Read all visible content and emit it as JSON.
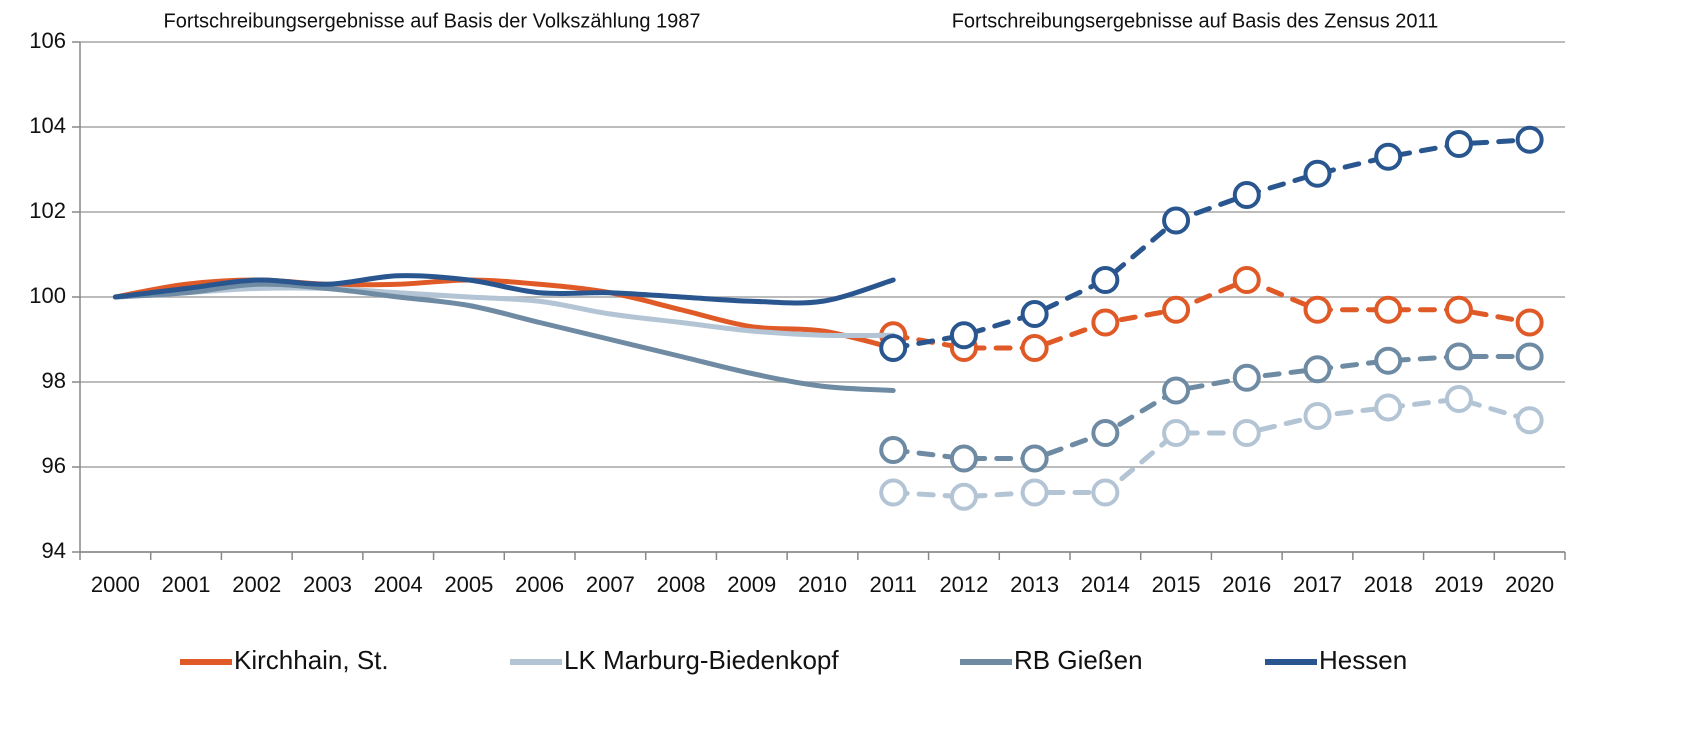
{
  "chart_data": {
    "type": "line",
    "annotations": [
      "Fortschreibungsergebnisse auf Basis der Volkszählung 1987",
      "Fortschreibungsergebnisse auf Basis des Zensus 2011"
    ],
    "categories": [
      "2000",
      "2001",
      "2002",
      "2003",
      "2004",
      "2005",
      "2006",
      "2007",
      "2008",
      "2009",
      "2010",
      "2011",
      "2012",
      "2013",
      "2014",
      "2015",
      "2016",
      "2017",
      "2018",
      "2019",
      "2020"
    ],
    "ylim": [
      94,
      106
    ],
    "yticks": [
      94,
      96,
      98,
      100,
      102,
      104,
      106
    ],
    "grid": true,
    "legend": "bottom",
    "series": [
      {
        "name": "Kirchhain, St.",
        "color": "#e05a27",
        "values": [
          100,
          100.3,
          100.4,
          100.3,
          100.3,
          100.4,
          100.3,
          100.1,
          99.7,
          99.3,
          99.2,
          98.8,
          null,
          null,
          null,
          null,
          null,
          null,
          null,
          null,
          null
        ],
        "census_values": [
          null,
          null,
          null,
          null,
          null,
          null,
          null,
          null,
          null,
          null,
          null,
          99.1,
          98.8,
          98.8,
          99.4,
          99.7,
          100.4,
          99.7,
          99.7,
          99.7,
          99.4
        ]
      },
      {
        "name": "LK Marburg-Biedenkopf",
        "color": "#b3c4d5",
        "values": [
          100,
          100.1,
          100.2,
          100.2,
          100.1,
          100.0,
          99.9,
          99.6,
          99.4,
          99.2,
          99.1,
          99.1,
          null,
          null,
          null,
          null,
          null,
          null,
          null,
          null,
          null
        ],
        "census_values": [
          null,
          null,
          null,
          null,
          null,
          null,
          null,
          null,
          null,
          null,
          null,
          95.4,
          95.3,
          95.4,
          95.4,
          96.8,
          96.8,
          97.2,
          97.4,
          97.6,
          97.1
        ]
      },
      {
        "name": "RB Gießen",
        "color": "#6e8ba3",
        "values": [
          100,
          100.1,
          100.3,
          100.2,
          100.0,
          99.8,
          99.4,
          99.0,
          98.6,
          98.2,
          97.9,
          97.8,
          null,
          null,
          null,
          null,
          null,
          null,
          null,
          null,
          null
        ],
        "census_values": [
          null,
          null,
          null,
          null,
          null,
          null,
          null,
          null,
          null,
          null,
          null,
          96.4,
          96.2,
          96.2,
          96.8,
          97.8,
          98.1,
          98.3,
          98.5,
          98.6,
          98.6
        ]
      },
      {
        "name": "Hessen",
        "color": "#2a5690",
        "values": [
          100,
          100.2,
          100.4,
          100.3,
          100.5,
          100.4,
          100.1,
          100.1,
          100.0,
          99.9,
          99.9,
          100.4,
          null,
          null,
          null,
          null,
          null,
          null,
          null,
          null,
          null
        ],
        "census_values": [
          null,
          null,
          null,
          null,
          null,
          null,
          null,
          null,
          null,
          null,
          null,
          98.8,
          99.1,
          99.6,
          100.4,
          101.8,
          102.4,
          102.9,
          103.3,
          103.6,
          103.7
        ]
      }
    ]
  }
}
